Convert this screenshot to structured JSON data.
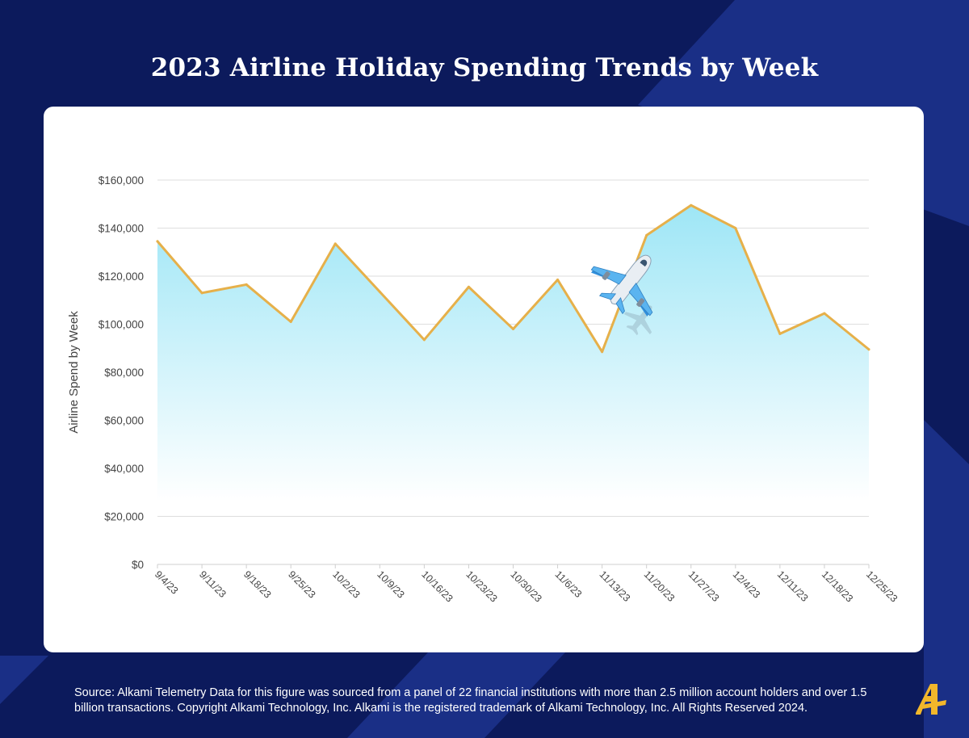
{
  "page": {
    "title": "2023 Airline Holiday Spending Trends by Week",
    "source_note": "Source:  Alkami Telemetry Data for this figure was sourced from a panel of 22 financial institutions with more than 2.5 million account holders and over 1.5 billion transactions. Copyright Alkami Technology, Inc. Alkami is the registered trademark of Alkami Technology, Inc. All Rights Reserved 2024.",
    "logo_icon": "alkami-logo-icon",
    "colors": {
      "background": "#0c1a5c",
      "background_accent": "#1a2f86",
      "line": "#e6b04a",
      "area_fill_top": "#9ee6f6",
      "logo": "#f2b72b"
    }
  },
  "chart_data": {
    "type": "area",
    "title": "2023 Airline Holiday Spending Trends by Week",
    "xlabel": "",
    "ylabel": "Airline Spend by Week",
    "categories": [
      "9/4/23",
      "9/11/23",
      "9/18/23",
      "9/25/23",
      "10/2/23",
      "10/9/23",
      "10/16/23",
      "10/23/23",
      "10/30/23",
      "11/6/23",
      "11/13/23",
      "11/20/23",
      "11/27/23",
      "12/4/23",
      "12/11/23",
      "12/18/23",
      "12/25/23"
    ],
    "series": [
      {
        "values": [
          134500,
          113000,
          116500,
          101000,
          133500,
          113500,
          93500,
          115500,
          98000,
          118500,
          88500,
          137000,
          149500,
          140000,
          96000,
          104500,
          89500
        ]
      }
    ],
    "ylim": [
      0,
      160000
    ],
    "yticks": [
      0,
      20000,
      40000,
      60000,
      80000,
      100000,
      120000,
      140000,
      160000
    ],
    "ytick_labels": [
      "$0",
      "$20,000",
      "$40,000",
      "$60,000",
      "$80,000",
      "$100,000",
      "$120,000",
      "$140,000",
      "$160,000"
    ],
    "grid": true,
    "legend": "none",
    "decoration_icon": "airplane-icon"
  }
}
